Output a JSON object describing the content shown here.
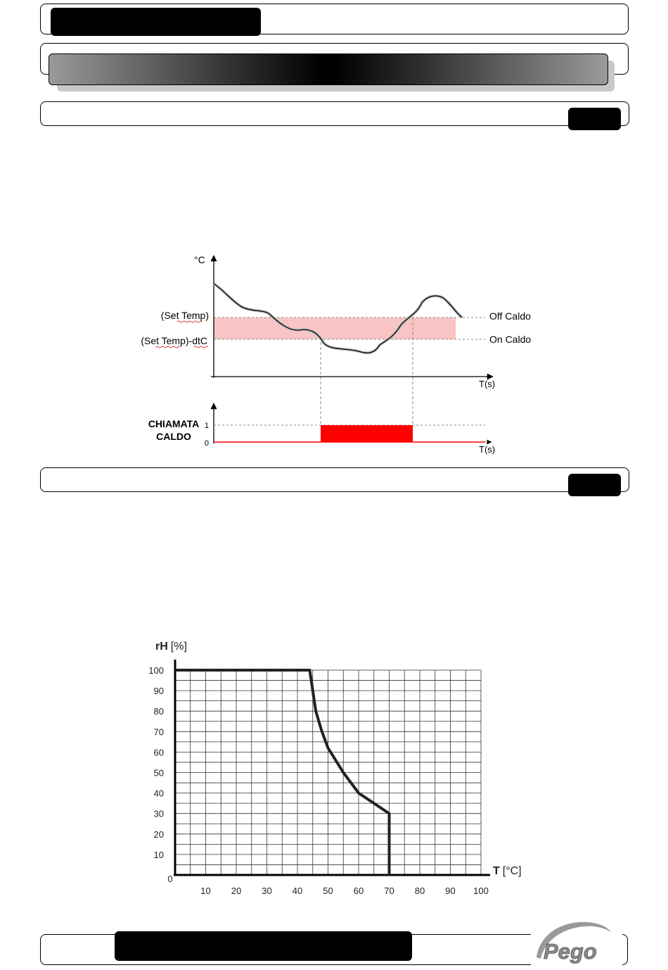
{
  "hysteresis_chart": {
    "y_unit": "°C",
    "x_unit": "T(s)",
    "set_temp_label": "(Set Temp)",
    "set_temp_dtc_label": "(Set Temp)-dtC",
    "off_label": "Off Caldo",
    "on_label": "On Caldo",
    "call_label_line1": "CHIAMATA",
    "call_label_line2": "CALDO",
    "call_tick_1": "1",
    "call_tick_0": "0",
    "call_x_unit": "T(s)",
    "colors": {
      "band": "#f9c4c4",
      "signal": "#ff0000",
      "curve": "#000000"
    }
  },
  "chart_data": {
    "type": "line",
    "title": "",
    "y_title_bold": "rH",
    "y_title_unit": "[%]",
    "x_title_bold": "T",
    "x_title_unit": "[°C]",
    "origin_label": "0",
    "x_ticks": [
      "10",
      "20",
      "30",
      "40",
      "50",
      "60",
      "70",
      "80",
      "90",
      "100"
    ],
    "y_ticks": [
      "100",
      "90",
      "80",
      "70",
      "60",
      "50",
      "40",
      "30",
      "20",
      "10"
    ],
    "xlim": [
      0,
      100
    ],
    "ylim": [
      0,
      100
    ],
    "grid": true,
    "series": [
      {
        "x": [
          0,
          44,
          45,
          46,
          48,
          50,
          55,
          60,
          65,
          70,
          70
        ],
        "y": [
          100,
          100,
          90,
          80,
          70,
          62,
          50,
          40,
          35,
          30,
          0
        ]
      }
    ]
  }
}
